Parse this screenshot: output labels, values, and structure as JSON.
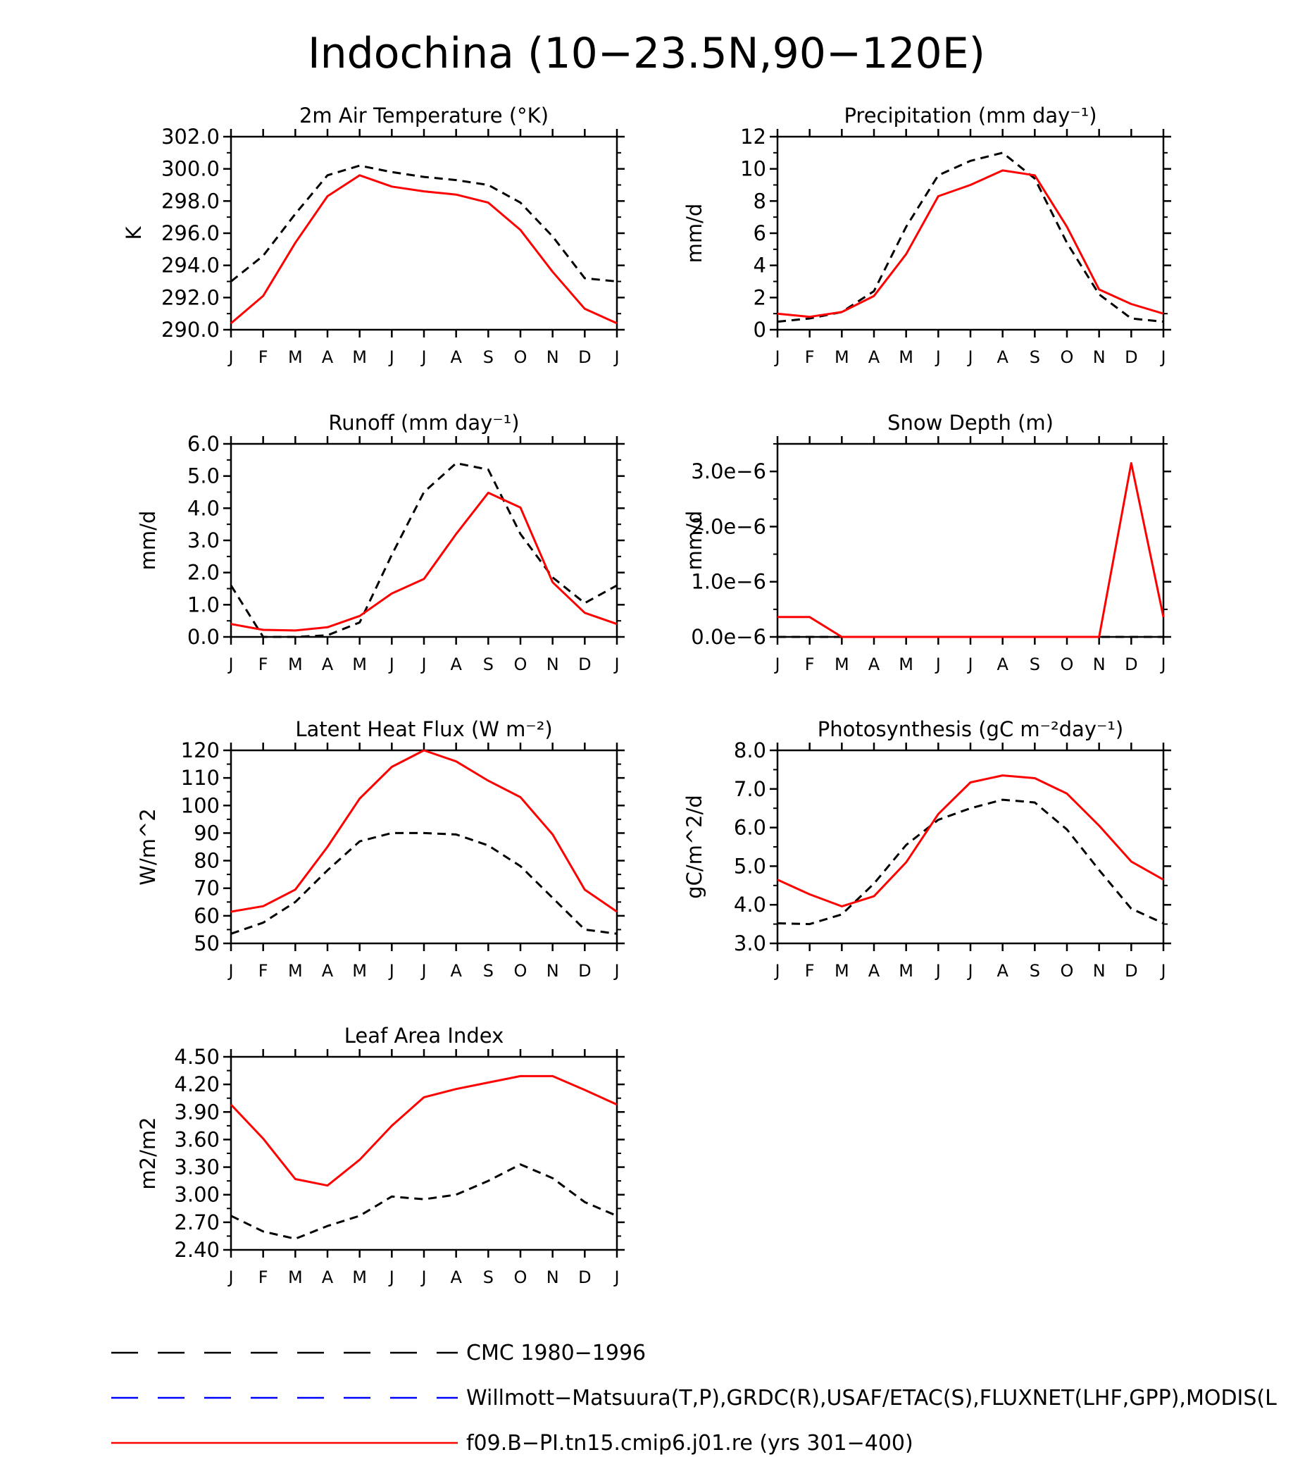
{
  "page_title": "Indochina (10−23.5N,90−120E)",
  "months": [
    "J",
    "F",
    "M",
    "A",
    "M",
    "J",
    "J",
    "A",
    "S",
    "O",
    "N",
    "D",
    "J"
  ],
  "legend": [
    {
      "label": "CMC 1980−1996",
      "color": "#000000",
      "style": "dashed"
    },
    {
      "label": "Willmott−Matsuura(T,P),GRDC(R),USAF/ETAC(S),FLUXNET(LHF,GPP),MODIS(L",
      "color": "#0000ff",
      "style": "dashed"
    },
    {
      "label": "f09.B−PI.tn15.cmip6.j01.re (yrs 301−400)",
      "color": "#ff0000",
      "style": "solid"
    }
  ],
  "chart_data": [
    {
      "type": "line",
      "title": "2m Air Temperature (°K)",
      "ylabel": "K",
      "ylim": [
        290,
        302
      ],
      "yticks": [
        "290.0",
        "292.0",
        "294.0",
        "296.0",
        "298.0",
        "300.0",
        "302.0"
      ],
      "x": [
        "J",
        "F",
        "M",
        "A",
        "M",
        "J",
        "J",
        "A",
        "S",
        "O",
        "N",
        "D",
        "J"
      ],
      "series": [
        {
          "name": "CMC 1980−1996",
          "color": "#000000",
          "style": "dashed",
          "values": [
            293.0,
            294.6,
            297.2,
            299.6,
            300.2,
            299.8,
            299.5,
            299.3,
            299.0,
            297.9,
            295.8,
            293.2,
            293.0
          ]
        },
        {
          "name": "f09.B−PI.tn15.cmip6.j01.re (yrs 301−400)",
          "color": "#ff0000",
          "style": "solid",
          "values": [
            290.4,
            292.1,
            295.4,
            298.3,
            299.6,
            298.9,
            298.6,
            298.4,
            297.9,
            296.2,
            293.6,
            291.3,
            290.4
          ]
        }
      ]
    },
    {
      "type": "line",
      "title": "Precipitation (mm day⁻¹)",
      "ylabel": "mm/d",
      "ylim": [
        0,
        12
      ],
      "yticks": [
        "0",
        "2",
        "4",
        "6",
        "8",
        "10",
        "12"
      ],
      "x": [
        "J",
        "F",
        "M",
        "A",
        "M",
        "J",
        "J",
        "A",
        "S",
        "O",
        "N",
        "D",
        "J"
      ],
      "series": [
        {
          "name": "CMC 1980−1996",
          "color": "#000000",
          "style": "dashed",
          "values": [
            0.5,
            0.7,
            1.1,
            2.4,
            6.4,
            9.6,
            10.5,
            11.0,
            9.4,
            5.4,
            2.2,
            0.7,
            0.5
          ]
        },
        {
          "name": "f09.B−PI.tn15.cmip6.j01.re (yrs 301−400)",
          "color": "#ff0000",
          "style": "solid",
          "values": [
            1.0,
            0.8,
            1.1,
            2.1,
            4.7,
            8.3,
            9.0,
            9.9,
            9.6,
            6.4,
            2.5,
            1.6,
            1.0
          ]
        }
      ]
    },
    {
      "type": "line",
      "title": "Runoff (mm day⁻¹)",
      "ylabel": "mm/d",
      "ylim": [
        0,
        6
      ],
      "yticks": [
        "0.0",
        "1.0",
        "2.0",
        "3.0",
        "4.0",
        "5.0",
        "6.0"
      ],
      "x": [
        "J",
        "F",
        "M",
        "A",
        "M",
        "J",
        "J",
        "A",
        "S",
        "O",
        "N",
        "D",
        "J"
      ],
      "series": [
        {
          "name": "CMC 1980−1996",
          "color": "#000000",
          "style": "dashed",
          "values": [
            1.6,
            0.0,
            0.0,
            0.05,
            0.45,
            2.55,
            4.5,
            5.4,
            5.2,
            3.2,
            1.85,
            1.05,
            1.6
          ]
        },
        {
          "name": "f09.B−PI.tn15.cmip6.j01.re (yrs 301−400)",
          "color": "#ff0000",
          "style": "solid",
          "values": [
            0.4,
            0.22,
            0.2,
            0.3,
            0.65,
            1.35,
            1.8,
            3.2,
            4.48,
            4.02,
            1.7,
            0.75,
            0.4
          ]
        }
      ]
    },
    {
      "type": "line",
      "title": "Snow Depth (m)",
      "ylabel": "mm/d",
      "ylim": [
        0,
        3.5e-06
      ],
      "yticks": [
        "0.0e−6",
        "1.0e−6",
        "2.0e−6",
        "3.0e−6"
      ],
      "ytick_values": [
        0,
        1e-06,
        2e-06,
        3e-06
      ],
      "x": [
        "J",
        "F",
        "M",
        "A",
        "M",
        "J",
        "J",
        "A",
        "S",
        "O",
        "N",
        "D",
        "J"
      ],
      "series": [
        {
          "name": "CMC 1980−1996",
          "color": "#000000",
          "style": "dashed",
          "values": [
            0,
            0,
            0,
            0,
            0,
            0,
            0,
            0,
            0,
            0,
            0,
            0,
            0
          ]
        },
        {
          "name": "f09.B−PI.tn15.cmip6.j01.re (yrs 301−400)",
          "color": "#ff0000",
          "style": "solid",
          "values": [
            3.6e-07,
            3.6e-07,
            0,
            0,
            0,
            0,
            0,
            0,
            0,
            0,
            0,
            3.15e-06,
            3.6e-07
          ]
        }
      ]
    },
    {
      "type": "line",
      "title": "Latent Heat Flux (W m⁻²)",
      "ylabel": "W/m^2",
      "ylim": [
        50,
        120
      ],
      "yticks": [
        "50",
        "60",
        "70",
        "80",
        "90",
        "100",
        "110",
        "120"
      ],
      "x": [
        "J",
        "F",
        "M",
        "A",
        "M",
        "J",
        "J",
        "A",
        "S",
        "O",
        "N",
        "D",
        "J"
      ],
      "series": [
        {
          "name": "CMC 1980−1996",
          "color": "#000000",
          "style": "dashed",
          "values": [
            53.5,
            57.5,
            65,
            76.5,
            87,
            90,
            90,
            89.5,
            85.5,
            78,
            66.5,
            55,
            53.5
          ]
        },
        {
          "name": "f09.B−PI.tn15.cmip6.j01.re (yrs 301−400)",
          "color": "#ff0000",
          "style": "solid",
          "values": [
            61.5,
            63.5,
            69.5,
            85,
            102.5,
            114,
            120,
            116,
            109,
            103,
            89.5,
            69.5,
            61.5
          ]
        }
      ]
    },
    {
      "type": "line",
      "title": "Photosynthesis (gC m⁻²day⁻¹)",
      "ylabel": "gC/m^2/d",
      "ylim": [
        3,
        8
      ],
      "yticks": [
        "3.0",
        "4.0",
        "5.0",
        "6.0",
        "7.0",
        "8.0"
      ],
      "x": [
        "J",
        "F",
        "M",
        "A",
        "M",
        "J",
        "J",
        "A",
        "S",
        "O",
        "N",
        "D",
        "J"
      ],
      "series": [
        {
          "name": "CMC 1980−1996",
          "color": "#000000",
          "style": "dashed",
          "values": [
            3.52,
            3.5,
            3.75,
            4.55,
            5.55,
            6.2,
            6.5,
            6.72,
            6.65,
            5.95,
            4.9,
            3.9,
            3.52
          ]
        },
        {
          "name": "f09.B−PI.tn15.cmip6.j01.re (yrs 301−400)",
          "color": "#ff0000",
          "style": "solid",
          "values": [
            4.65,
            4.27,
            3.96,
            4.22,
            5.1,
            6.35,
            7.17,
            7.35,
            7.28,
            6.88,
            6.05,
            5.12,
            4.65
          ]
        }
      ]
    },
    {
      "type": "line",
      "title": "Leaf Area Index",
      "ylabel": "m2/m2",
      "ylim": [
        2.4,
        4.5
      ],
      "yticks": [
        "2.40",
        "2.70",
        "3.00",
        "3.30",
        "3.60",
        "3.90",
        "4.20",
        "4.50"
      ],
      "x": [
        "J",
        "F",
        "M",
        "A",
        "M",
        "J",
        "J",
        "A",
        "S",
        "O",
        "N",
        "D",
        "J"
      ],
      "series": [
        {
          "name": "CMC 1980−1996",
          "color": "#000000",
          "style": "dashed",
          "values": [
            2.77,
            2.6,
            2.52,
            2.66,
            2.77,
            2.98,
            2.95,
            3.0,
            3.15,
            3.33,
            3.18,
            2.92,
            2.77
          ]
        },
        {
          "name": "f09.B−PI.tn15.cmip6.j01.re (yrs 301−400)",
          "color": "#ff0000",
          "style": "solid",
          "values": [
            3.98,
            3.61,
            3.17,
            3.1,
            3.38,
            3.75,
            4.06,
            4.15,
            4.22,
            4.29,
            4.29,
            4.14,
            3.98
          ]
        }
      ]
    }
  ]
}
